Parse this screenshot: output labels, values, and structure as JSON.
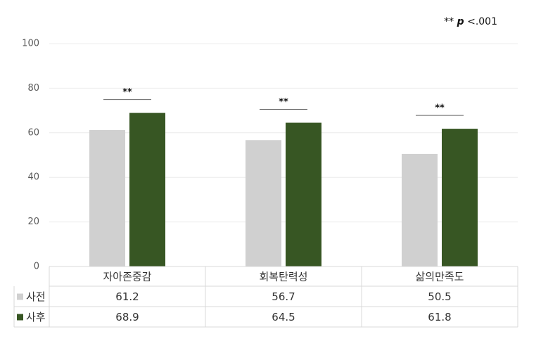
{
  "chart_data": {
    "type": "bar",
    "annotation": {
      "marker": "**",
      "symbol": "p",
      "threshold": "<.001"
    },
    "categories": [
      "자아존중감",
      "회복탄력성",
      "삶의만족도"
    ],
    "series": [
      {
        "name": "사전",
        "color": "#d0d0d0",
        "values": [
          61.2,
          56.7,
          50.5
        ]
      },
      {
        "name": "사후",
        "color": "#375623",
        "values": [
          68.9,
          64.5,
          61.8
        ]
      }
    ],
    "significance": [
      "**",
      "**",
      "**"
    ],
    "ylim": [
      0,
      100
    ],
    "yticks": [
      0,
      20,
      40,
      60,
      80,
      100
    ],
    "grid": true,
    "data_table": true
  }
}
